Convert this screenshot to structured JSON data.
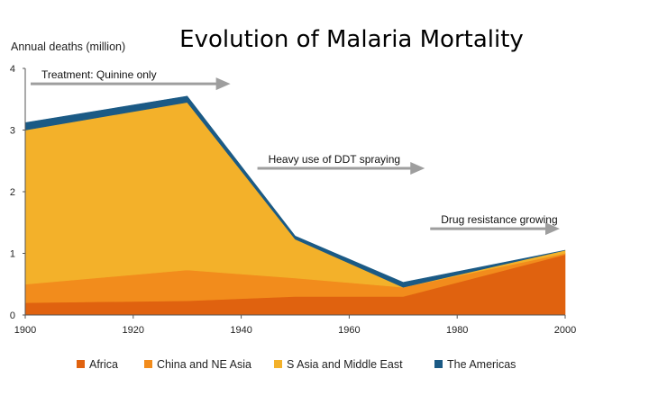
{
  "chart_data": {
    "type": "area",
    "title": "Evolution of Malaria Mortality",
    "ylabel": "Annual deaths (million)",
    "xlabel": "",
    "x": [
      1900,
      1930,
      1950,
      1970,
      2000
    ],
    "xlim": [
      1900,
      2000
    ],
    "ylim": [
      0,
      4
    ],
    "x_ticks": [
      "1900",
      "1920",
      "1940",
      "1960",
      "1980",
      "2000"
    ],
    "y_ticks": [
      "0",
      "1",
      "2",
      "3",
      "4"
    ],
    "stacked": true,
    "grid": false,
    "legend_position": "bottom",
    "series": [
      {
        "name": "Africa",
        "color": "#E0620F",
        "values": [
          0.2,
          0.23,
          0.3,
          0.3,
          0.98
        ]
      },
      {
        "name": "China and NE Asia",
        "color": "#F28C1C",
        "values": [
          0.3,
          0.5,
          0.3,
          0.15,
          0.02
        ]
      },
      {
        "name": "S Asia and Middle East",
        "color": "#F3B12A",
        "values": [
          2.5,
          2.72,
          0.63,
          0.0,
          0.05
        ]
      },
      {
        "name": "The Americas",
        "color": "#1B5A85",
        "values": [
          0.12,
          0.1,
          0.05,
          0.08,
          0.0
        ]
      }
    ],
    "annotations": [
      {
        "text": "Treatment: Quinine only",
        "x_start": 1901,
        "x_end": 1938,
        "y": 3.75
      },
      {
        "text": "Heavy use of DDT spraying",
        "x_start": 1943,
        "x_end": 1974,
        "y": 2.38
      },
      {
        "text": "Drug resistance growing",
        "x_start": 1975,
        "x_end": 1999,
        "y": 1.4
      }
    ],
    "arrow_color": "#9E9E9E"
  }
}
